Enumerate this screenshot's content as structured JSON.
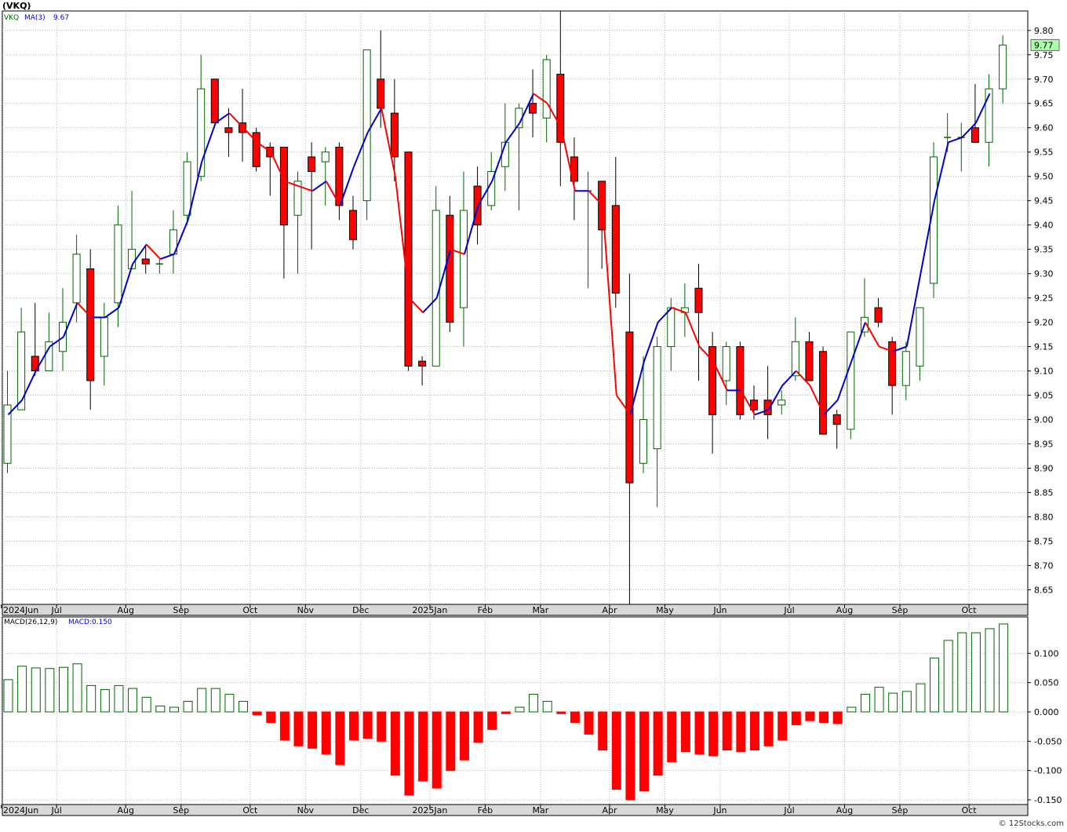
{
  "header": {
    "title": "(VKQ)",
    "watermark": "© 12Stocks.com"
  },
  "price_panel": {
    "legend_symbol": "VKQ",
    "legend_ma_label": "MA(3)",
    "legend_ma_value": "9.67",
    "last_price_label": "9.77"
  },
  "macd_panel": {
    "legend_label": "MACD(26,12,9)",
    "legend_value": "MACD:0.150"
  },
  "colors": {
    "up_candle_border": "#006400",
    "down_candle_fill": "#ff0000",
    "ma_up": "#0000cc",
    "ma_down": "#ff0000",
    "macd_pos": "#006400",
    "macd_neg": "#ff0000",
    "grid": "#b4b4b4",
    "last_price_bg": "#aaffaa",
    "axis_band": "#d8d8d8"
  },
  "chart_data": [
    {
      "type": "candlestick",
      "series_name": "VKQ",
      "interval": "weekly",
      "x_labels": [
        "2024Jun",
        "Jul",
        "Aug",
        "Sep",
        "Oct",
        "Nov",
        "Dec",
        "2025Jan",
        "Feb",
        "Mar",
        "Apr",
        "May",
        "Jun",
        "Jul",
        "Aug",
        "Sep",
        "Oct"
      ],
      "x_label_week_index": [
        0,
        4,
        9,
        13,
        18,
        22,
        26,
        31,
        35,
        39,
        44,
        48,
        52,
        57,
        61,
        65,
        70
      ],
      "y_ticks": [
        8.65,
        8.7,
        8.75,
        8.8,
        8.85,
        8.9,
        8.95,
        9.0,
        9.05,
        9.1,
        9.15,
        9.2,
        9.25,
        9.3,
        9.35,
        9.4,
        9.45,
        9.5,
        9.55,
        9.6,
        9.65,
        9.7,
        9.75,
        9.8
      ],
      "ylim": [
        8.62,
        9.84
      ],
      "ohlc": [
        [
          8.91,
          9.1,
          8.89,
          9.03
        ],
        [
          9.02,
          9.23,
          9.02,
          9.18
        ],
        [
          9.13,
          9.24,
          9.09,
          9.1
        ],
        [
          9.1,
          9.22,
          9.1,
          9.16
        ],
        [
          9.14,
          9.27,
          9.1,
          9.2
        ],
        [
          9.24,
          9.38,
          9.2,
          9.34
        ],
        [
          9.31,
          9.35,
          9.02,
          9.08
        ],
        [
          9.13,
          9.24,
          9.07,
          9.21
        ],
        [
          9.24,
          9.44,
          9.19,
          9.4
        ],
        [
          9.31,
          9.47,
          9.31,
          9.35
        ],
        [
          9.33,
          9.36,
          9.3,
          9.32
        ],
        [
          9.32,
          9.33,
          9.3,
          9.32
        ],
        [
          9.34,
          9.43,
          9.3,
          9.39
        ],
        [
          9.42,
          9.55,
          9.4,
          9.53
        ],
        [
          9.5,
          9.75,
          9.49,
          9.68
        ],
        [
          9.7,
          9.7,
          9.61,
          9.61
        ],
        [
          9.6,
          9.64,
          9.54,
          9.59
        ],
        [
          9.61,
          9.68,
          9.53,
          9.59
        ],
        [
          9.59,
          9.6,
          9.51,
          9.52
        ],
        [
          9.56,
          9.57,
          9.46,
          9.54
        ],
        [
          9.56,
          9.56,
          9.29,
          9.4
        ],
        [
          9.42,
          9.51,
          9.3,
          9.49
        ],
        [
          9.54,
          9.57,
          9.35,
          9.51
        ],
        [
          9.53,
          9.56,
          9.44,
          9.55
        ],
        [
          9.56,
          9.57,
          9.41,
          9.44
        ],
        [
          9.43,
          9.46,
          9.35,
          9.37
        ],
        [
          9.45,
          9.76,
          9.41,
          9.76
        ],
        [
          9.7,
          9.8,
          9.6,
          9.64
        ],
        [
          9.63,
          9.7,
          9.49,
          9.54
        ],
        [
          9.55,
          9.55,
          9.1,
          9.11
        ],
        [
          9.12,
          9.13,
          9.07,
          9.11
        ],
        [
          9.11,
          9.48,
          9.11,
          9.43
        ],
        [
          9.42,
          9.46,
          9.18,
          9.2
        ],
        [
          9.23,
          9.51,
          9.15,
          9.43
        ],
        [
          9.48,
          9.52,
          9.36,
          9.4
        ],
        [
          9.44,
          9.55,
          9.43,
          9.51
        ],
        [
          9.52,
          9.65,
          9.47,
          9.57
        ],
        [
          9.6,
          9.65,
          9.43,
          9.64
        ],
        [
          9.65,
          9.72,
          9.58,
          9.63
        ],
        [
          9.62,
          9.75,
          9.57,
          9.74
        ],
        [
          9.71,
          9.84,
          9.48,
          9.57
        ],
        [
          9.54,
          9.58,
          9.41,
          9.49
        ],
        [
          9.47,
          9.51,
          9.27,
          9.47
        ],
        [
          9.49,
          9.49,
          9.31,
          9.39
        ],
        [
          9.44,
          9.54,
          9.23,
          9.26
        ],
        [
          9.18,
          9.3,
          8.62,
          8.87
        ],
        [
          8.91,
          9.13,
          8.89,
          9.0
        ],
        [
          8.94,
          9.17,
          8.82,
          9.15
        ],
        [
          9.15,
          9.25,
          9.1,
          9.23
        ],
        [
          9.22,
          9.28,
          9.17,
          9.23
        ],
        [
          9.27,
          9.32,
          9.08,
          9.22
        ],
        [
          9.15,
          9.18,
          8.93,
          9.01
        ],
        [
          9.08,
          9.16,
          9.03,
          9.15
        ],
        [
          9.15,
          9.16,
          9.0,
          9.01
        ],
        [
          9.04,
          9.07,
          9.0,
          9.02
        ],
        [
          9.04,
          9.11,
          8.96,
          9.01
        ],
        [
          9.03,
          9.06,
          9.01,
          9.04
        ],
        [
          9.09,
          9.21,
          9.08,
          9.16
        ],
        [
          9.16,
          9.18,
          9.08,
          9.08
        ],
        [
          9.14,
          9.15,
          8.97,
          8.97
        ],
        [
          9.01,
          9.02,
          8.94,
          8.99
        ],
        [
          8.98,
          9.18,
          8.96,
          9.18
        ],
        [
          9.18,
          9.29,
          9.17,
          9.21
        ],
        [
          9.23,
          9.25,
          9.19,
          9.2
        ],
        [
          9.16,
          9.17,
          9.01,
          9.07
        ],
        [
          9.07,
          9.16,
          9.04,
          9.14
        ],
        [
          9.11,
          9.23,
          9.08,
          9.23
        ],
        [
          9.28,
          9.57,
          9.25,
          9.54
        ],
        [
          9.58,
          9.63,
          9.55,
          9.58
        ],
        [
          9.58,
          9.61,
          9.51,
          9.58
        ],
        [
          9.6,
          9.69,
          9.57,
          9.57
        ],
        [
          9.57,
          9.71,
          9.52,
          9.68
        ],
        [
          9.68,
          9.79,
          9.65,
          9.77
        ]
      ],
      "ma3": [
        9.01,
        9.04,
        9.1,
        9.15,
        9.17,
        9.24,
        9.21,
        9.21,
        9.23,
        9.32,
        9.36,
        9.33,
        9.34,
        9.41,
        9.53,
        9.61,
        9.63,
        9.6,
        9.57,
        9.55,
        9.49,
        9.48,
        9.47,
        9.49,
        9.44,
        9.52,
        9.59,
        9.64,
        9.5,
        9.25,
        9.22,
        9.25,
        9.35,
        9.34,
        9.44,
        9.49,
        9.57,
        9.61,
        9.67,
        9.65,
        9.6,
        9.47,
        9.47,
        9.44,
        9.05,
        9.01,
        9.12,
        9.2,
        9.23,
        9.22,
        9.15,
        9.12,
        9.06,
        9.06,
        9.01,
        9.02,
        9.07,
        9.1,
        9.07,
        9.01,
        9.04,
        9.12,
        9.2,
        9.15,
        9.14,
        9.15,
        9.3,
        9.45,
        9.57,
        9.58,
        9.61,
        9.67
      ]
    },
    {
      "type": "bar",
      "series_name": "MACD(26,12,9)",
      "y_ticks": [
        -0.15,
        -0.1,
        -0.05,
        0.0,
        0.05,
        0.1
      ],
      "ylim": [
        -0.158,
        0.162
      ],
      "values": [
        0.055,
        0.078,
        0.075,
        0.074,
        0.076,
        0.082,
        0.045,
        0.038,
        0.045,
        0.04,
        0.025,
        0.01,
        0.008,
        0.018,
        0.04,
        0.04,
        0.03,
        0.018,
        -0.005,
        -0.018,
        -0.048,
        -0.058,
        -0.062,
        -0.072,
        -0.09,
        -0.048,
        -0.045,
        -0.05,
        -0.108,
        -0.142,
        -0.118,
        -0.13,
        -0.1,
        -0.082,
        -0.052,
        -0.03,
        -0.003,
        0.008,
        0.03,
        0.018,
        -0.003,
        -0.018,
        -0.038,
        -0.065,
        -0.132,
        -0.15,
        -0.135,
        -0.108,
        -0.085,
        -0.068,
        -0.072,
        -0.075,
        -0.065,
        -0.068,
        -0.065,
        -0.058,
        -0.048,
        -0.022,
        -0.015,
        -0.018,
        -0.02,
        0.008,
        0.03,
        0.042,
        0.032,
        0.035,
        0.048,
        0.092,
        0.122,
        0.135,
        0.135,
        0.142,
        0.15
      ]
    }
  ]
}
